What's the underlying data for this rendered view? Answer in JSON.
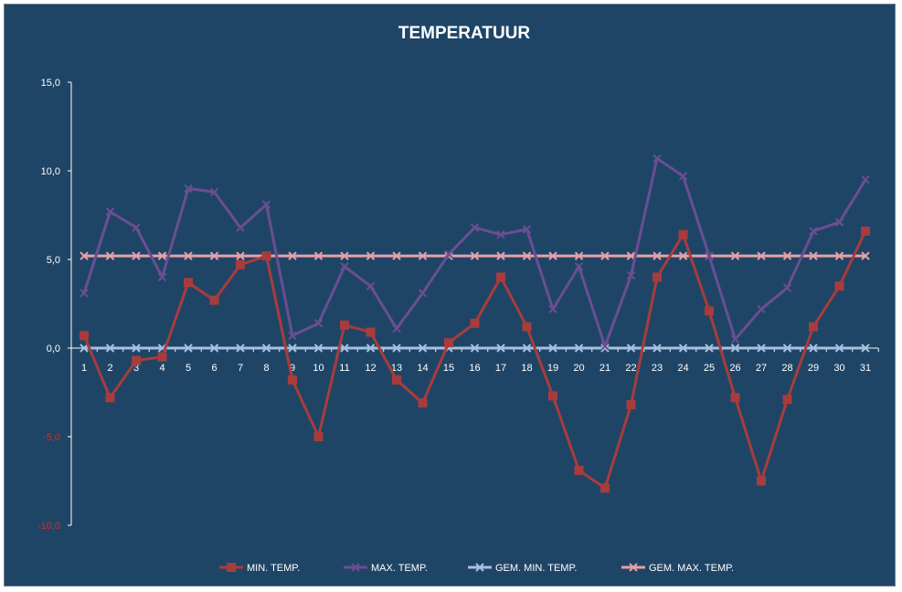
{
  "chart_data": {
    "type": "line",
    "title": "TEMPERATUUR",
    "categories": [
      "1",
      "2",
      "3",
      "4",
      "5",
      "6",
      "7",
      "8",
      "9",
      "10",
      "11",
      "12",
      "13",
      "14",
      "15",
      "16",
      "17",
      "18",
      "19",
      "20",
      "21",
      "22",
      "23",
      "24",
      "25",
      "26",
      "27",
      "28",
      "29",
      "30",
      "31"
    ],
    "y_ticks": [
      "15,0",
      "10,0",
      "5,0",
      "0,0",
      "-5,0",
      "-10,0"
    ],
    "ylim": [
      -10,
      15
    ],
    "grid": false,
    "legend_position": "bottom",
    "series": [
      {
        "name": "MIN. TEMP.",
        "color": "#a83c3c",
        "marker": "square",
        "values": [
          0.7,
          -2.8,
          -0.7,
          -0.5,
          3.7,
          2.7,
          4.7,
          5.2,
          -1.8,
          -5.0,
          1.3,
          0.9,
          -1.8,
          -3.1,
          0.3,
          1.4,
          4.0,
          1.2,
          -2.7,
          -6.9,
          -7.9,
          -3.2,
          4.0,
          6.4,
          2.1,
          -2.8,
          -7.5,
          -2.9,
          1.2,
          3.5,
          6.6
        ]
      },
      {
        "name": "MAX. TEMP.",
        "color": "#6a4e92",
        "marker": "x",
        "values": [
          3.1,
          7.7,
          6.8,
          4.0,
          9.0,
          8.8,
          6.8,
          8.1,
          0.7,
          1.4,
          4.6,
          3.5,
          1.1,
          3.1,
          5.3,
          6.8,
          6.4,
          6.7,
          2.2,
          4.6,
          0.1,
          4.1,
          10.7,
          9.7,
          5.2,
          0.5,
          2.2,
          3.4,
          6.6,
          7.1,
          9.5
        ]
      },
      {
        "name": "GEM. MIN. TEMP.",
        "color": "#a8c0e0",
        "marker": "x",
        "values": [
          0.0,
          0.0,
          0.0,
          0.0,
          0.0,
          0.0,
          0.0,
          0.0,
          0.0,
          0.0,
          0.0,
          0.0,
          0.0,
          0.0,
          0.0,
          0.0,
          0.0,
          0.0,
          0.0,
          0.0,
          0.0,
          0.0,
          0.0,
          0.0,
          0.0,
          0.0,
          0.0,
          0.0,
          0.0,
          0.0,
          0.0
        ]
      },
      {
        "name": "GEM. MAX. TEMP.",
        "color": "#e6a0a8",
        "marker": "x",
        "values": [
          5.2,
          5.2,
          5.2,
          5.2,
          5.2,
          5.2,
          5.2,
          5.2,
          5.2,
          5.2,
          5.2,
          5.2,
          5.2,
          5.2,
          5.2,
          5.2,
          5.2,
          5.2,
          5.2,
          5.2,
          5.2,
          5.2,
          5.2,
          5.2,
          5.2,
          5.2,
          5.2,
          5.2,
          5.2,
          5.2,
          5.2
        ]
      }
    ]
  }
}
